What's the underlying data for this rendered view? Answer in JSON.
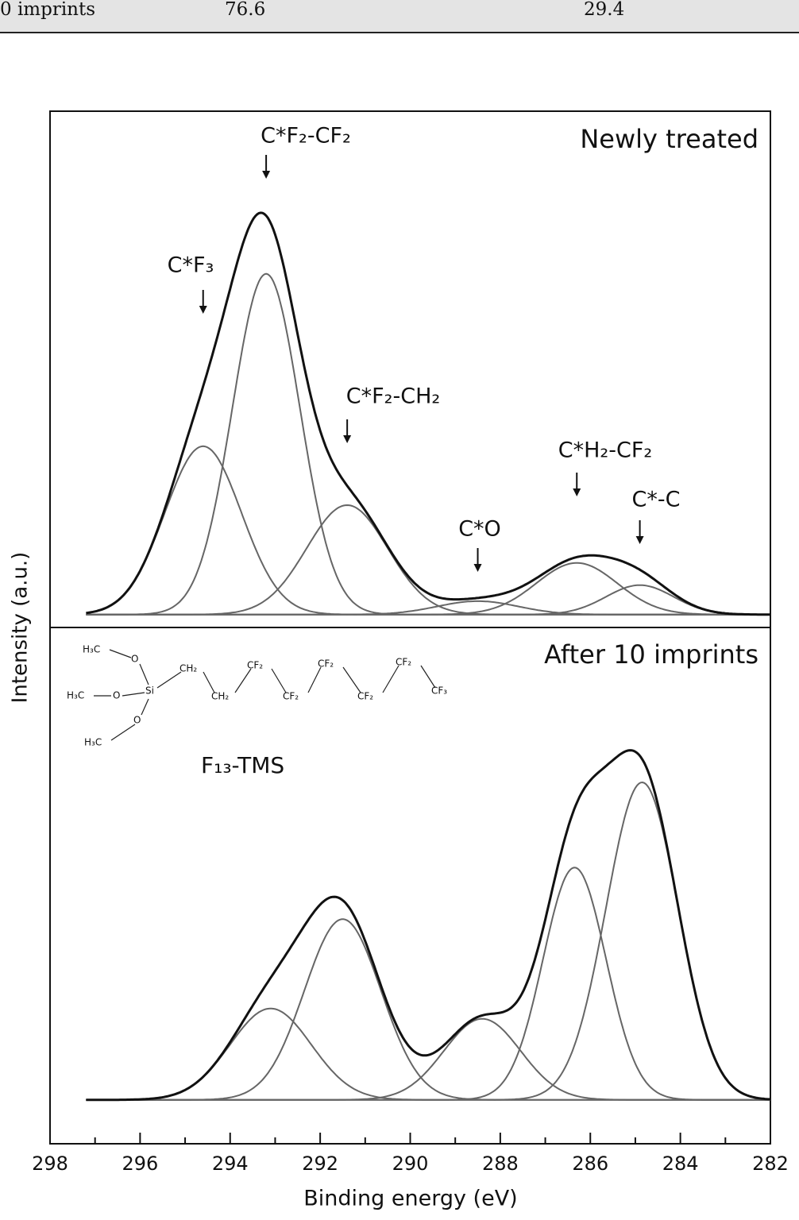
{
  "table": {
    "rows": [
      [
        "0 imprints",
        "76.6",
        "29.4"
      ]
    ]
  },
  "chart_data": {
    "type": "peaks",
    "xlabel": "Binding energy (eV)",
    "ylabel": "Intensity (a.u.)",
    "xlim": [
      298,
      282
    ],
    "xticks": [
      298,
      296,
      294,
      292,
      290,
      288,
      286,
      284,
      282
    ],
    "xminorticks": [
      297,
      295,
      293,
      291,
      289,
      287,
      285,
      283
    ],
    "panels": [
      {
        "title": "Newly treated",
        "ylim": [
          -2.5,
          97.5
        ],
        "peaks": [
          {
            "label": "C*F₃",
            "center": 294.6,
            "height": 32.6,
            "sigma": 0.85
          },
          {
            "label": "C*F₂-CF₂",
            "center": 293.2,
            "height": 66,
            "sigma": 0.75
          },
          {
            "label": "C*F₂-CH₂",
            "center": 291.4,
            "height": 21.2,
            "sigma": 0.9
          },
          {
            "label": "C*O",
            "center": 288.5,
            "height": 2.6,
            "sigma": 0.9
          },
          {
            "label": "C*H₂-CF₂",
            "center": 286.3,
            "height": 10,
            "sigma": 0.9
          },
          {
            "label": "C*-C",
            "center": 284.9,
            "height": 5.7,
            "sigma": 0.75
          }
        ]
      },
      {
        "title": "After 10 imprints",
        "ylim": [
          -8.5,
          91.5
        ],
        "peaks": [
          {
            "center": 293.1,
            "height": 17.7,
            "sigma": 0.9
          },
          {
            "center": 291.5,
            "height": 35,
            "sigma": 0.85
          },
          {
            "center": 288.4,
            "height": 15.7,
            "sigma": 0.85
          },
          {
            "center": 286.35,
            "height": 45,
            "sigma": 0.7
          },
          {
            "center": 284.85,
            "height": 61.5,
            "sigma": 0.8
          }
        ]
      }
    ]
  },
  "structure": {
    "name": "F₁₃-TMS",
    "atoms": [
      "H₃C",
      "O",
      "H₃C",
      "O",
      "Si",
      "H₃C",
      "O",
      "CH₂",
      "CH₂",
      "CF₂",
      "CF₂",
      "CF₂",
      "CF₂",
      "CF₂",
      "CF₃"
    ]
  }
}
